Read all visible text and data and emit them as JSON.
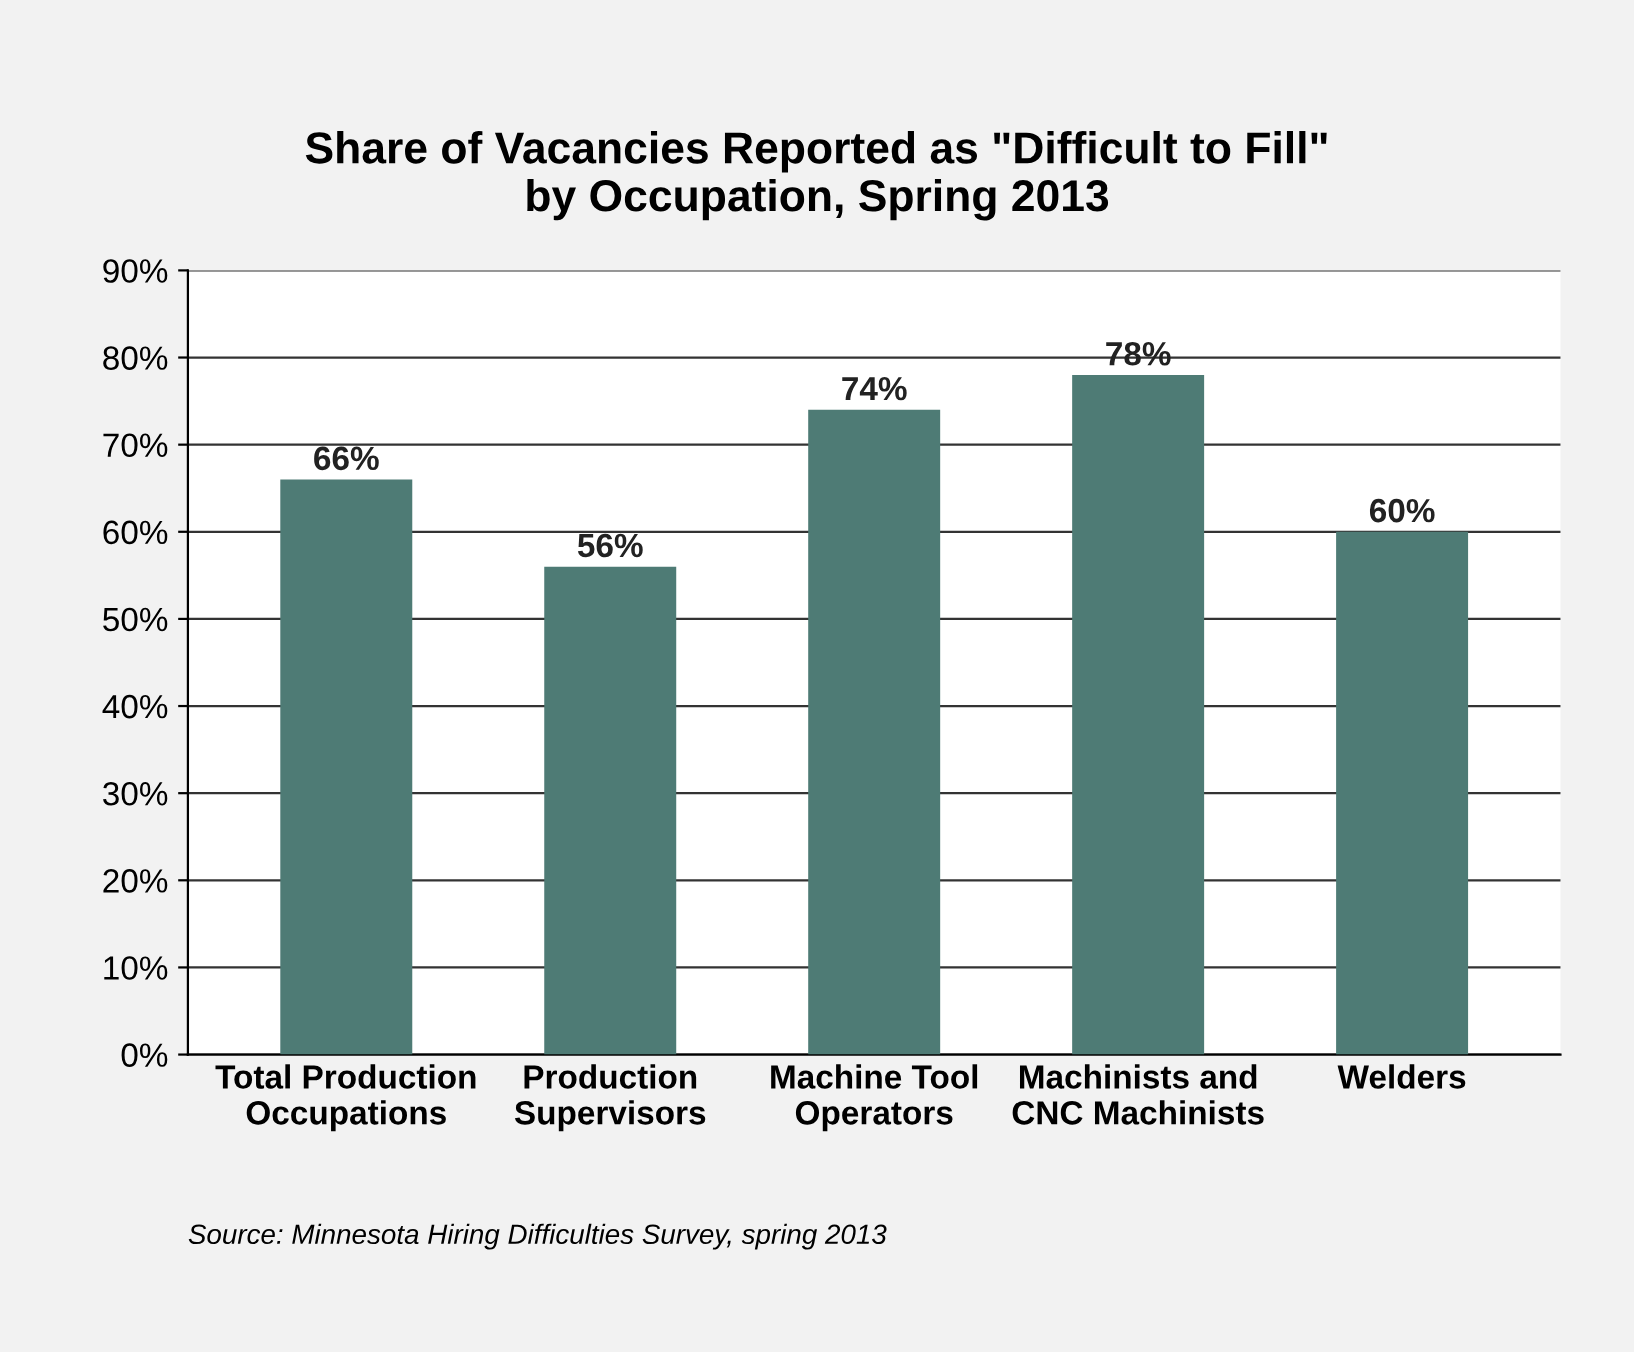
{
  "chart_data": {
    "type": "bar",
    "title": "Share of Vacancies Reported as \"Difficult to Fill\"\nby Occupation, Spring 2013",
    "categories": [
      "Total Production\nOccupations",
      "Production\nSupervisors",
      "Machine Tool\nOperators",
      "Machinists and\nCNC Machinists",
      "Welders"
    ],
    "values": [
      66,
      56,
      74,
      78,
      60
    ],
    "value_labels": [
      "66%",
      "56%",
      "74%",
      "78%",
      "60%"
    ],
    "color": "#4e7b75",
    "ylim": [
      0,
      90
    ],
    "yticks": [
      {
        "value": 0,
        "label": "0%"
      },
      {
        "value": 10,
        "label": "10%"
      },
      {
        "value": 20,
        "label": "20%"
      },
      {
        "value": 30,
        "label": "30%"
      },
      {
        "value": 40,
        "label": "40%"
      },
      {
        "value": 50,
        "label": "50%"
      },
      {
        "value": 60,
        "label": "60%"
      },
      {
        "value": 70,
        "label": "70%"
      },
      {
        "value": 80,
        "label": "80%"
      },
      {
        "value": 90,
        "label": "90%"
      }
    ],
    "grid": "y",
    "annotations": [
      "Source: Minnesota Hiring Difficulties Survey, spring 2013"
    ]
  }
}
